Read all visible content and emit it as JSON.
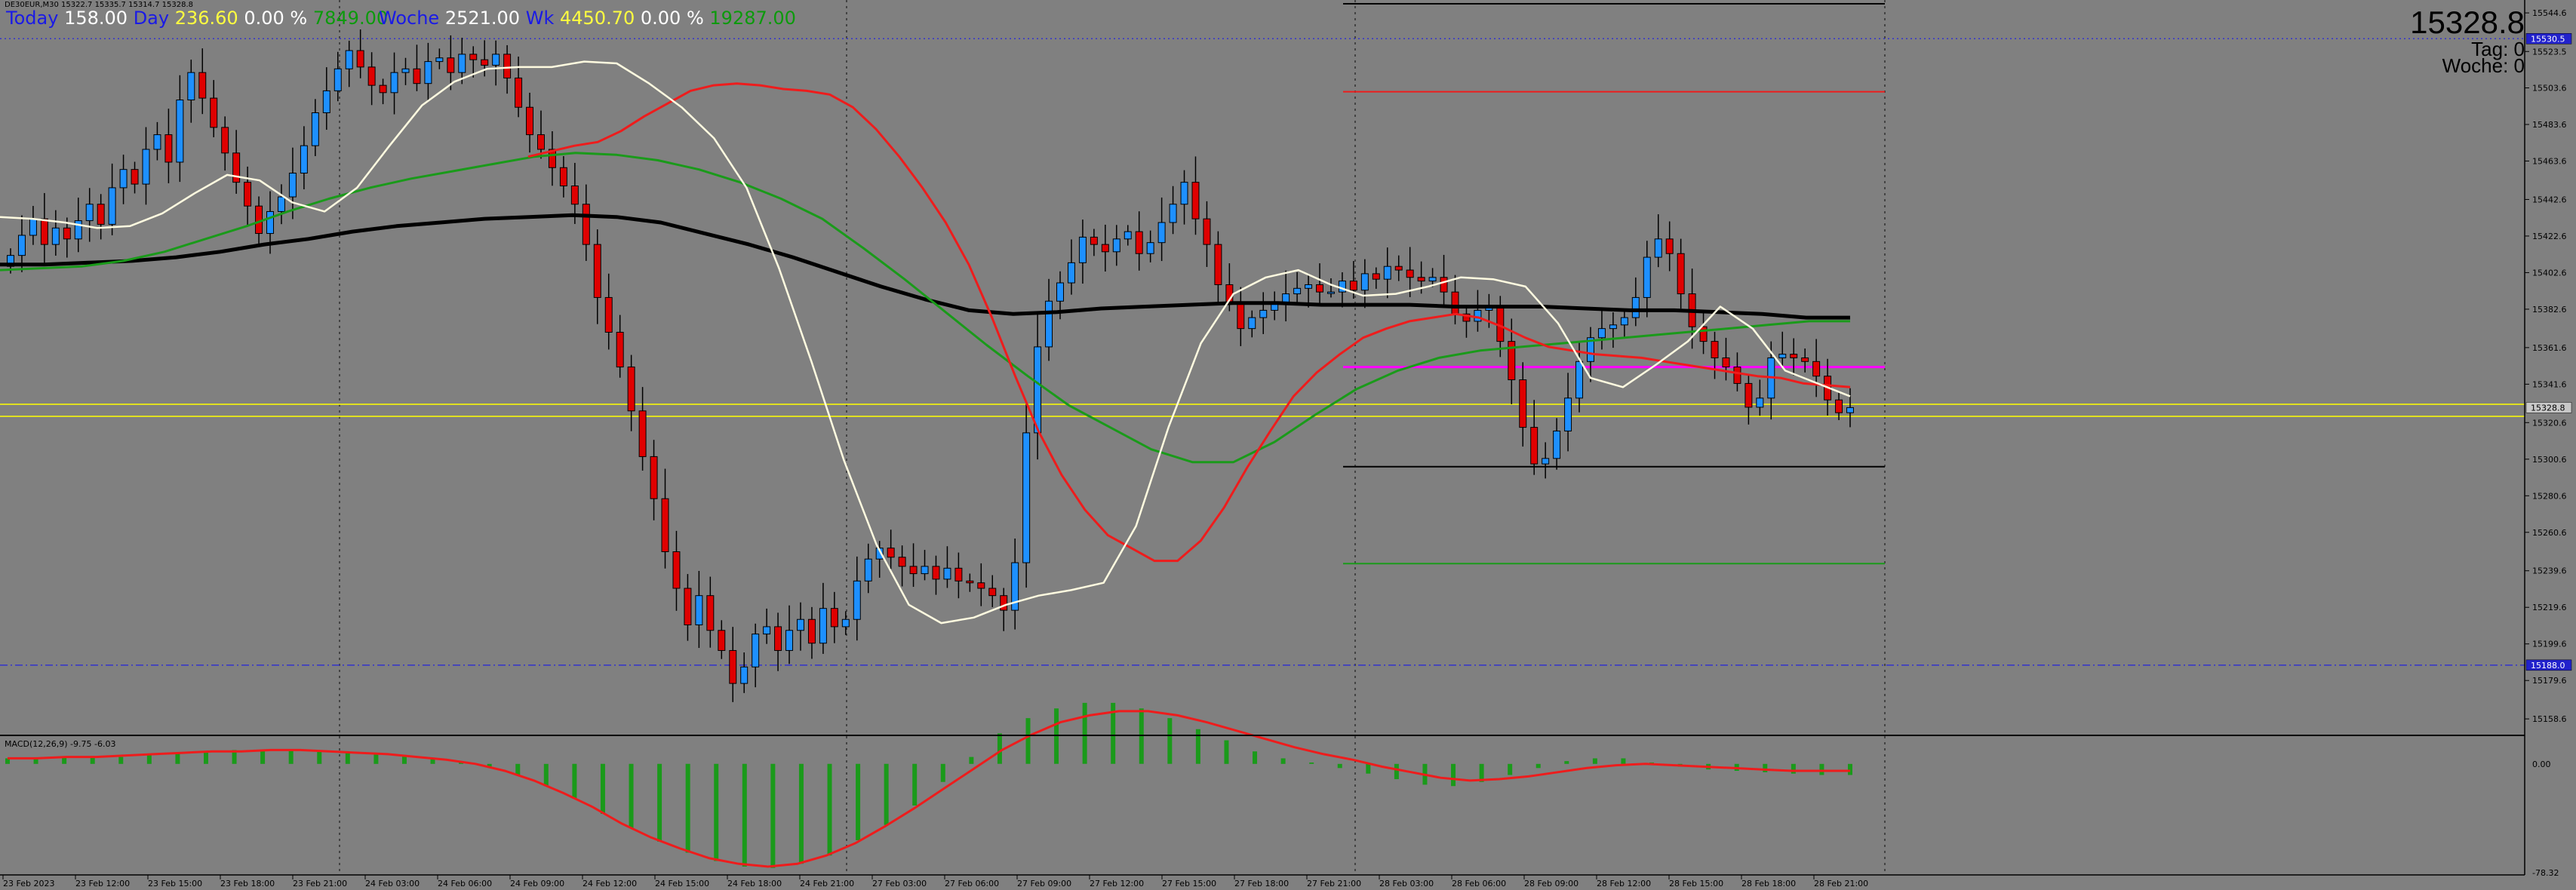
{
  "header": {
    "symbol": "DE30EUR,M30  15322.7 15335.7 15314.7 15328.8",
    "today_label": "Today",
    "today_pts": "158.00",
    "day_label": "Day",
    "day_val": "236.60",
    "day_pct": "0.00 %",
    "day_green": "7849.00",
    "woche_label": "Woche",
    "woche_val": "2521.00",
    "wk_label": "Wk",
    "wk_val": "4450.70",
    "wk_pct": "0.00 %",
    "wk_green": "19287.00"
  },
  "info": {
    "price": "15328.8",
    "tag": "Tag:  0",
    "woche": "Woche:  0"
  },
  "macd": {
    "label": "MACD(12,26,9) -9.75 -6.03"
  },
  "colors": {
    "background": "#808080",
    "bull": "#1e90ff",
    "bear": "#e00000",
    "ema_fast": "#fffbe0",
    "ema_mid": "#ee1c1c",
    "ema_slow": "#1a9a1a",
    "ema_long": "#000000",
    "macd_hist": "#1a9a1a",
    "macd_signal": "#ee1c1c",
    "level_magenta": "#ff00ff",
    "level_yellow": "#ffff00",
    "level_blue": "#3333cc"
  },
  "chart_data": {
    "type": "candlestick",
    "timeframe": "M30",
    "y_axis_ticks": [
      "15544.6",
      "15523.5",
      "15503.6",
      "15483.6",
      "15463.6",
      "15442.6",
      "15422.6",
      "15402.6",
      "15382.6",
      "15361.6",
      "15341.6",
      "15320.6",
      "15300.6",
      "15280.6",
      "15260.6",
      "15239.6",
      "15219.6",
      "15199.6",
      "15179.6",
      "15158.6"
    ],
    "price_tags": [
      {
        "label": "15530.5",
        "kind": "blue"
      },
      {
        "label": "15328.8",
        "kind": "plain"
      },
      {
        "label": "15188.0",
        "kind": "blue"
      }
    ],
    "macd_ticks": [
      "0.00",
      "-78.32"
    ],
    "x_labels": [
      "23 Feb 2023",
      "23 Feb 12:00",
      "23 Feb 15:00",
      "23 Feb 18:00",
      "23 Feb 21:00",
      "24 Feb 03:00",
      "24 Feb 06:00",
      "24 Feb 09:00",
      "24 Feb 12:00",
      "24 Feb 15:00",
      "24 Feb 18:00",
      "24 Feb 21:00",
      "27 Feb 03:00",
      "27 Feb 06:00",
      "27 Feb 09:00",
      "27 Feb 12:00",
      "27 Feb 15:00",
      "27 Feb 18:00",
      "27 Feb 21:00",
      "28 Feb 03:00",
      "28 Feb 06:00",
      "28 Feb 09:00",
      "28 Feb 12:00",
      "28 Feb 15:00",
      "28 Feb 18:00",
      "28 Feb 21:00"
    ],
    "closes": [
      15412,
      15423,
      15432,
      15418,
      15427,
      15421,
      15431,
      15440,
      15429,
      15449,
      15459,
      15451,
      15470,
      15478,
      15463,
      15497,
      15512,
      15498,
      15482,
      15468,
      15452,
      15439,
      15424,
      15436,
      15444,
      15457,
      15472,
      15490,
      15502,
      15514,
      15524,
      15515,
      15505,
      15501,
      15512,
      15514,
      15506,
      15518,
      15520,
      15512,
      15522,
      15519,
      15516,
      15522,
      15509,
      15493,
      15478,
      15470,
      15460,
      15450,
      15440,
      15418,
      15389,
      15370,
      15351,
      15327,
      15302,
      15279,
      15250,
      15230,
      15210,
      15226,
      15207,
      15196,
      15178,
      15187,
      15205,
      15209,
      15196,
      15207,
      15213,
      15200,
      15219,
      15209,
      15213,
      15234,
      15246,
      15252,
      15247,
      15242,
      15238,
      15242,
      15235,
      15241,
      15234,
      15233,
      15230,
      15226,
      15218,
      15244,
      15315,
      15362,
      15387,
      15397,
      15408,
      15422,
      15418,
      15414,
      15421,
      15425,
      15413,
      15419,
      15430,
      15440,
      15452,
      15432,
      15418,
      15396,
      15386,
      15372,
      15378,
      15382,
      15386,
      15391,
      15394,
      15396,
      15392,
      15392,
      15398,
      15393,
      15402,
      15399,
      15406,
      15404,
      15400,
      15398,
      15400,
      15392,
      15380,
      15376,
      15382,
      15384,
      15365,
      15344,
      15318,
      15298,
      15301,
      15316,
      15334,
      15354,
      15367,
      15372,
      15374,
      15378,
      15389,
      15411,
      15421,
      15413,
      15391,
      15373,
      15365,
      15356,
      15351,
      15342,
      15329,
      15334,
      15356,
      15358,
      15356,
      15354,
      15346,
      15333,
      15326,
      15328.8
    ],
    "ema_fast_samples": [
      15433,
      15432,
      15430,
      15427,
      15428,
      15435,
      15446,
      15456,
      15453,
      15441,
      15436,
      15449,
      15472,
      15494,
      15507,
      15514,
      15515,
      15515,
      15518,
      15517,
      15506,
      15493,
      15476,
      15449,
      15405,
      15354,
      15300,
      15254,
      15221,
      15211,
      15214,
      15221,
      15226,
      15229,
      15233,
      15264,
      15318,
      15364,
      15391,
      15400,
      15404,
      15396,
      15390,
      15391,
      15395,
      15400,
      15399,
      15395,
      15375,
      15345,
      15340,
      15352,
      15365,
      15384,
      15372,
      15349,
      15342,
      15335
    ],
    "ema_mid_samples": [
      15466,
      15469,
      15472,
      15474,
      15480,
      15488,
      15495,
      15502,
      15505,
      15506,
      15505,
      15503,
      15502,
      15500,
      15493,
      15481,
      15466,
      15449,
      15430,
      15407,
      15378,
      15346,
      15316,
      15292,
      15273,
      15259,
      15252,
      15245,
      15245,
      15256,
      15274,
      15296,
      15316,
      15335,
      15348,
      15358,
      15367,
      15372,
      15376,
      15378,
      15380,
      15378,
      15373,
      15367,
      15362,
      15360,
      15358,
      15357,
      15356,
      15354,
      15352,
      15350,
      15348,
      15346,
      15345,
      15342,
      15341,
      15340
    ],
    "ema_slow_samples": [
      15404,
      15405,
      15406,
      15409,
      15414,
      15421,
      15428,
      15436,
      15443,
      15449,
      15454,
      15458,
      15462,
      15466,
      15468,
      15467,
      15464,
      15459,
      15452,
      15443,
      15432,
      15416,
      15399,
      15381,
      15363,
      15346,
      15330,
      15318,
      15306,
      15299,
      15299,
      15310,
      15325,
      15339,
      15349,
      15356,
      15360,
      15362,
      15364,
      15366,
      15368,
      15370,
      15372,
      15374,
      15376,
      15376
    ],
    "ema_long_samples": [
      15407,
      15407,
      15408,
      15409,
      15411,
      15414,
      15418,
      15421,
      15425,
      15428,
      15430,
      15432,
      15433,
      15434,
      15433,
      15430,
      15424,
      15418,
      15411,
      15403,
      15395,
      15388,
      15382,
      15380,
      15381,
      15383,
      15384,
      15385,
      15386,
      15386,
      15385,
      15385,
      15385,
      15384,
      15384,
      15384,
      15383,
      15382,
      15382,
      15381,
      15380,
      15378,
      15378
    ],
    "macd_hist_samples": [
      4,
      4,
      5,
      5,
      5,
      7,
      8,
      9,
      10,
      10,
      10,
      9,
      8,
      7,
      6,
      4,
      1,
      -2,
      -8,
      -16,
      -25,
      -36,
      -46,
      -56,
      -64,
      -70,
      -74,
      -75,
      -72,
      -66,
      -55,
      -44,
      -30,
      -13,
      5,
      22,
      33,
      40,
      44,
      44,
      40,
      33,
      25,
      17,
      9,
      4,
      1,
      -3,
      -7,
      -11,
      -15,
      -16,
      -13,
      -8,
      -3,
      2,
      4,
      4,
      1,
      -2,
      -4,
      -5,
      -6,
      -7,
      -8,
      -8
    ],
    "macd_signal_samples": [
      4,
      4,
      5,
      5,
      6,
      7,
      8,
      9,
      9,
      10,
      10,
      9,
      8,
      7,
      5,
      3,
      0,
      -5,
      -12,
      -21,
      -31,
      -43,
      -53,
      -61,
      -68,
      -72,
      -74,
      -72,
      -66,
      -57,
      -45,
      -32,
      -18,
      -4,
      10,
      21,
      30,
      35,
      38,
      38,
      35,
      30,
      24,
      18,
      12,
      7,
      3,
      -2,
      -6,
      -10,
      -12,
      -11,
      -9,
      -6,
      -3,
      -1,
      0,
      -1,
      -2,
      -3,
      -4,
      -5,
      -5,
      -5
    ],
    "levels": [
      {
        "price": 15530.5,
        "style": "dotted",
        "color": "#3333cc"
      },
      {
        "price": 15188.0,
        "style": "dashdot",
        "color": "#3333cc"
      },
      {
        "price": 15330.6,
        "style": "solid",
        "color": "#ffff00"
      },
      {
        "price": 15324.0,
        "style": "solid",
        "color": "#ffff00"
      },
      {
        "price": 15351.0,
        "style": "solid",
        "color": "#ff00ff"
      },
      {
        "price": 15501.5,
        "style": "solid",
        "color": "#ee1c1c"
      },
      {
        "price": 15296.5,
        "style": "solid",
        "color": "#000000"
      },
      {
        "price": 15243.5,
        "style": "solid",
        "color": "#1a9a1a"
      }
    ]
  }
}
